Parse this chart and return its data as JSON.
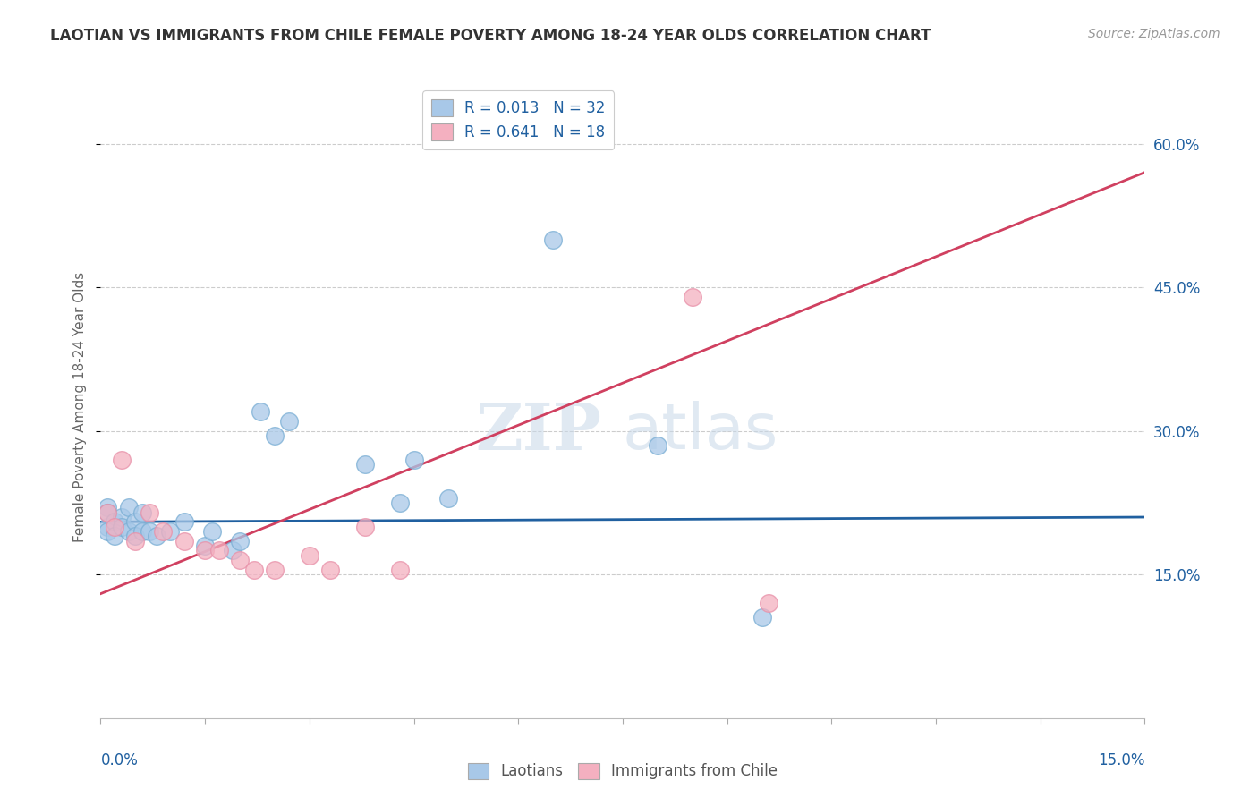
{
  "title": "LAOTIAN VS IMMIGRANTS FROM CHILE FEMALE POVERTY AMONG 18-24 YEAR OLDS CORRELATION CHART",
  "source": "Source: ZipAtlas.com",
  "ylabel": "Female Poverty Among 18-24 Year Olds",
  "xlim": [
    0.0,
    0.15
  ],
  "ylim": [
    0.0,
    0.65
  ],
  "laotian_color": "#a8c8e8",
  "laotian_edge": "#7aaed4",
  "chile_color": "#f4b0c0",
  "chile_edge": "#e890a8",
  "laotian_line_color": "#2060a0",
  "chile_line_color": "#d04060",
  "legend_label_1": "R = 0.013   N = 32",
  "legend_label_2": "R = 0.641   N = 18",
  "watermark_zip": "ZIP",
  "watermark_atlas": "atlas",
  "laotian_pts": [
    [
      0.001,
      0.22
    ],
    [
      0.001,
      0.2
    ],
    [
      0.001,
      0.215
    ],
    [
      0.001,
      0.195
    ],
    [
      0.002,
      0.205
    ],
    [
      0.002,
      0.19
    ],
    [
      0.003,
      0.21
    ],
    [
      0.003,
      0.2
    ],
    [
      0.004,
      0.22
    ],
    [
      0.004,
      0.195
    ],
    [
      0.005,
      0.205
    ],
    [
      0.005,
      0.19
    ],
    [
      0.006,
      0.215
    ],
    [
      0.006,
      0.195
    ],
    [
      0.007,
      0.195
    ],
    [
      0.008,
      0.19
    ],
    [
      0.01,
      0.195
    ],
    [
      0.012,
      0.205
    ],
    [
      0.015,
      0.18
    ],
    [
      0.016,
      0.195
    ],
    [
      0.019,
      0.175
    ],
    [
      0.02,
      0.185
    ],
    [
      0.023,
      0.32
    ],
    [
      0.025,
      0.295
    ],
    [
      0.027,
      0.31
    ],
    [
      0.038,
      0.265
    ],
    [
      0.043,
      0.225
    ],
    [
      0.045,
      0.27
    ],
    [
      0.05,
      0.23
    ],
    [
      0.065,
      0.5
    ],
    [
      0.08,
      0.285
    ],
    [
      0.095,
      0.105
    ]
  ],
  "chile_pts": [
    [
      0.001,
      0.215
    ],
    [
      0.002,
      0.2
    ],
    [
      0.003,
      0.27
    ],
    [
      0.005,
      0.185
    ],
    [
      0.007,
      0.215
    ],
    [
      0.009,
      0.195
    ],
    [
      0.012,
      0.185
    ],
    [
      0.015,
      0.175
    ],
    [
      0.017,
      0.175
    ],
    [
      0.02,
      0.165
    ],
    [
      0.022,
      0.155
    ],
    [
      0.025,
      0.155
    ],
    [
      0.03,
      0.17
    ],
    [
      0.033,
      0.155
    ],
    [
      0.038,
      0.2
    ],
    [
      0.043,
      0.155
    ],
    [
      0.085,
      0.44
    ],
    [
      0.096,
      0.12
    ]
  ],
  "laotian_line": [
    0.0,
    0.15,
    0.205,
    0.21
  ],
  "chile_line": [
    0.0,
    0.15,
    0.13,
    0.57
  ],
  "ytick_vals": [
    0.15,
    0.3,
    0.45,
    0.6
  ],
  "ytick_labels": [
    "15.0%",
    "30.0%",
    "45.0%",
    "60.0%"
  ]
}
